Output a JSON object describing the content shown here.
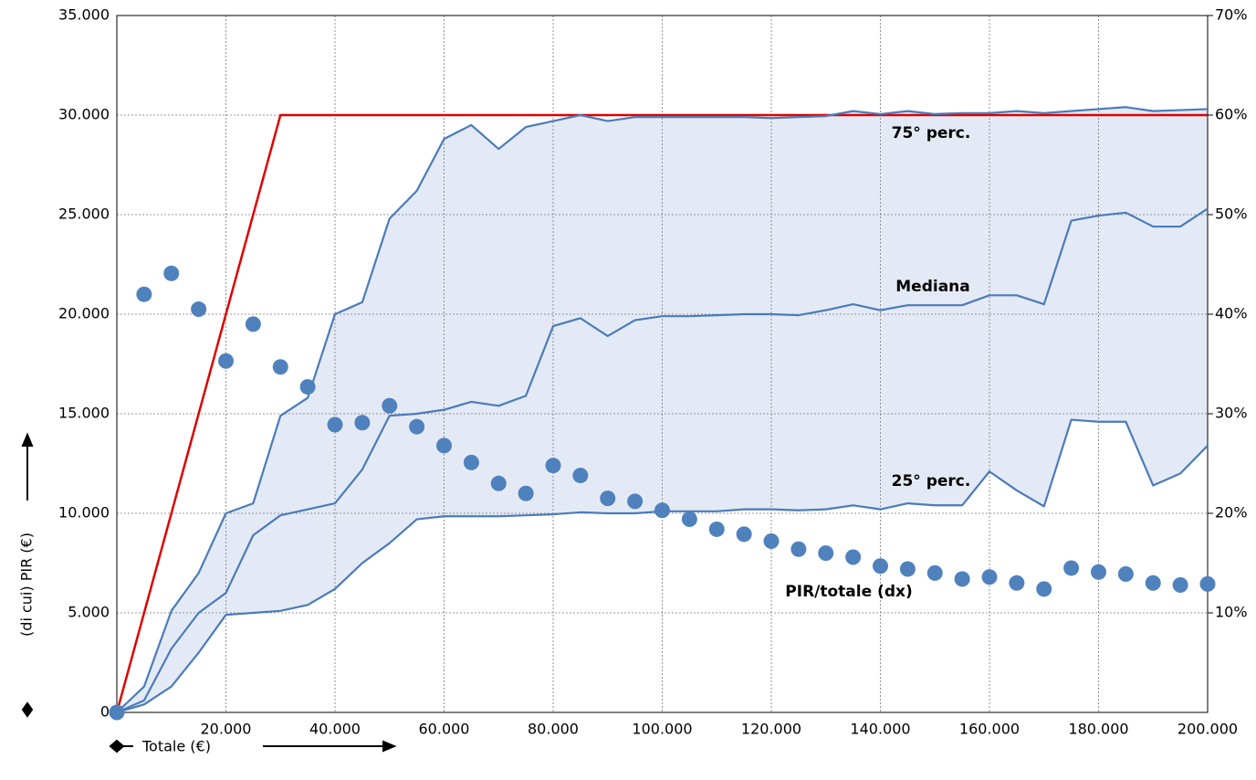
{
  "chart_data": {
    "type": "line",
    "y_label": "(di cui) PIR (€)",
    "x_label": "Totale (€)",
    "x": [
      0,
      5000,
      10000,
      15000,
      20000,
      25000,
      30000,
      35000,
      40000,
      45000,
      50000,
      55000,
      60000,
      65000,
      70000,
      75000,
      80000,
      85000,
      90000,
      95000,
      100000,
      105000,
      110000,
      115000,
      120000,
      125000,
      130000,
      135000,
      140000,
      145000,
      150000,
      155000,
      160000,
      165000,
      170000,
      175000,
      180000,
      185000,
      190000,
      195000,
      200000
    ],
    "series": [
      {
        "color": "#e00000",
        "x": [
          0,
          30000,
          200000
        ],
        "values": [
          0,
          30000,
          30000
        ]
      },
      {
        "name": "75° perc.",
        "color": "#4a7bbb",
        "values": [
          0,
          1300,
          5100,
          7000,
          10000,
          10500,
          14900,
          15800,
          20000,
          20600,
          24800,
          26200,
          28800,
          29500,
          28300,
          29400,
          29700,
          30000,
          29700,
          29900,
          29900,
          29900,
          29900,
          29900,
          29850,
          29900,
          29950,
          30200,
          30050,
          30200,
          30050,
          30100,
          30100,
          30200,
          30100,
          30200,
          30300,
          30400,
          30200,
          30250,
          30300
        ]
      },
      {
        "name": "Mediana",
        "color": "#4a7bbb",
        "values": [
          0,
          600,
          3200,
          5000,
          6000,
          8900,
          9900,
          10200,
          10500,
          12200,
          14900,
          15000,
          15200,
          15600,
          15400,
          15900,
          19400,
          19800,
          18900,
          19700,
          19900,
          19900,
          19950,
          20000,
          20000,
          19950,
          20200,
          20500,
          20200,
          20450,
          20450,
          20450,
          20950,
          20950,
          20500,
          24700,
          24950,
          25100,
          24400,
          24400,
          25300
        ]
      },
      {
        "name": "25° perc.",
        "color": "#4a7bbb",
        "values": [
          0,
          400,
          1300,
          3000,
          4900,
          5000,
          5100,
          5400,
          6200,
          7500,
          8500,
          9700,
          9850,
          9850,
          9850,
          9900,
          9950,
          10050,
          10000,
          10000,
          10100,
          10100,
          10100,
          10200,
          10200,
          10150,
          10200,
          10400,
          10200,
          10500,
          10400,
          10400,
          12100,
          11150,
          10350,
          14700,
          14600,
          14600,
          11400,
          12000,
          13400
        ]
      },
      {
        "name": "PIR/totale (dx)",
        "type": "scatter",
        "axis": "y2",
        "color": "#4f81bd",
        "values": [
          0,
          42.0,
          44.1,
          40.5,
          35.3,
          39.0,
          34.7,
          32.7,
          28.9,
          29.1,
          30.8,
          28.7,
          26.8,
          25.1,
          23.0,
          22.0,
          24.8,
          23.8,
          21.5,
          21.2,
          20.3,
          19.4,
          18.4,
          17.9,
          17.2,
          16.4,
          16.0,
          15.6,
          14.7,
          14.4,
          14.0,
          13.4,
          13.6,
          13.0,
          12.4,
          14.5,
          14.1,
          13.9,
          13.0,
          12.8,
          12.9
        ]
      }
    ],
    "band_color": "#e4eaf5",
    "xlim": [
      0,
      200000
    ],
    "xticks": [
      {
        "value": 20000,
        "label": "20.000"
      },
      {
        "value": 40000,
        "label": "40.000"
      },
      {
        "value": 60000,
        "label": "60.000"
      },
      {
        "value": 80000,
        "label": "80.000"
      },
      {
        "value": 100000,
        "label": "100.000"
      },
      {
        "value": 120000,
        "label": "120.000"
      },
      {
        "value": 140000,
        "label": "140.000"
      },
      {
        "value": 160000,
        "label": "160.000"
      },
      {
        "value": 180000,
        "label": "180.000"
      },
      {
        "value": 200000,
        "label": "200.000"
      }
    ],
    "ylim": [
      0,
      35000
    ],
    "yticks": [
      0,
      {
        "value": 5000,
        "label": "5.000"
      },
      {
        "value": 10000,
        "label": "10.000"
      },
      {
        "value": 15000,
        "label": "15.000"
      },
      {
        "value": 20000,
        "label": "20.000"
      },
      {
        "value": 25000,
        "label": "25.000"
      },
      {
        "value": 30000,
        "label": "30.000"
      },
      {
        "value": 35000,
        "label": "35.000"
      }
    ],
    "y2lim": [
      0,
      70
    ],
    "y2ticks": [
      {
        "value": 10,
        "label": "10%"
      },
      {
        "value": 20,
        "label": "20%"
      },
      {
        "value": 30,
        "label": "30%"
      },
      {
        "value": 40,
        "label": "40%"
      },
      {
        "value": 50,
        "label": "50%"
      },
      {
        "value": 60,
        "label": "60%"
      },
      {
        "value": 70,
        "label": "70%"
      }
    ],
    "grid": true
  }
}
